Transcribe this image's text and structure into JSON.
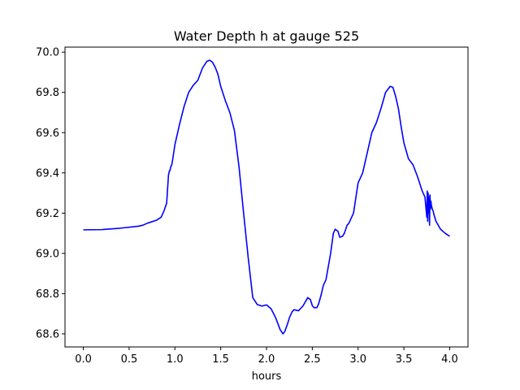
{
  "chart_data": {
    "type": "line",
    "title": "Water Depth h at gauge 525",
    "xlabel": "hours",
    "ylabel": "",
    "xlim": [
      -0.2,
      4.2
    ],
    "ylim": [
      68.535,
      70.025
    ],
    "xticks": [
      0.0,
      0.5,
      1.0,
      1.5,
      2.0,
      2.5,
      3.0,
      3.5,
      4.0
    ],
    "xtick_labels": [
      "0.0",
      "0.5",
      "1.0",
      "1.5",
      "2.0",
      "2.5",
      "3.0",
      "3.5",
      "4.0"
    ],
    "yticks": [
      68.6,
      68.8,
      69.0,
      69.2,
      69.4,
      69.6,
      69.8,
      70.0
    ],
    "ytick_labels": [
      "68.6",
      "68.8",
      "69.0",
      "69.2",
      "69.4",
      "69.6",
      "69.8",
      "70.0"
    ],
    "grid": false,
    "legend": "none",
    "series": [
      {
        "color": "#0000ff",
        "x": [
          0.0,
          0.2,
          0.4,
          0.6,
          0.65,
          0.7,
          0.8,
          0.85,
          0.88,
          0.91,
          0.93,
          0.94,
          0.945,
          0.955,
          0.965,
          0.97,
          0.98,
          1.0,
          1.05,
          1.1,
          1.15,
          1.2,
          1.25,
          1.3,
          1.35,
          1.38,
          1.41,
          1.44,
          1.47,
          1.5,
          1.55,
          1.6,
          1.65,
          1.7,
          1.75,
          1.8,
          1.85,
          1.9,
          1.92,
          1.95,
          1.98,
          2.0,
          2.05,
          2.1,
          2.15,
          2.18,
          2.2,
          2.23,
          2.25,
          2.28,
          2.3,
          2.35,
          2.4,
          2.45,
          2.48,
          2.5,
          2.52,
          2.55,
          2.57,
          2.6,
          2.62,
          2.65,
          2.7,
          2.73,
          2.75,
          2.78,
          2.8,
          2.83,
          2.85,
          2.88,
          2.9,
          2.95,
          3.0,
          3.05,
          3.1,
          3.15,
          3.2,
          3.25,
          3.3,
          3.35,
          3.38,
          3.41,
          3.44,
          3.47,
          3.5,
          3.55,
          3.6,
          3.65,
          3.7,
          3.73,
          3.75,
          3.755,
          3.76,
          3.765,
          3.77,
          3.775,
          3.78,
          3.785,
          3.79,
          3.795,
          3.8,
          3.81,
          3.82,
          3.83,
          3.85,
          3.9,
          3.95,
          4.0
        ],
        "y": [
          69.117,
          69.118,
          69.125,
          69.135,
          69.14,
          69.15,
          69.165,
          69.18,
          69.21,
          69.25,
          69.39,
          69.41,
          69.41,
          69.43,
          69.44,
          69.45,
          69.48,
          69.54,
          69.64,
          69.73,
          69.8,
          69.835,
          69.86,
          69.92,
          69.955,
          69.96,
          69.95,
          69.925,
          69.89,
          69.83,
          69.76,
          69.7,
          69.61,
          69.43,
          69.2,
          68.98,
          68.78,
          68.745,
          68.743,
          68.738,
          68.742,
          68.744,
          68.725,
          68.68,
          68.62,
          68.6,
          68.612,
          68.65,
          68.68,
          68.71,
          68.72,
          68.715,
          68.74,
          68.78,
          68.77,
          68.74,
          68.73,
          68.73,
          68.75,
          68.8,
          68.84,
          68.87,
          69.0,
          69.1,
          69.12,
          69.11,
          69.08,
          69.085,
          69.1,
          69.14,
          69.15,
          69.2,
          69.35,
          69.4,
          69.5,
          69.6,
          69.65,
          69.72,
          69.8,
          69.83,
          69.825,
          69.78,
          69.72,
          69.63,
          69.55,
          69.47,
          69.44,
          69.38,
          69.31,
          69.28,
          69.18,
          69.31,
          69.16,
          69.3,
          69.2,
          69.28,
          69.14,
          69.29,
          69.22,
          69.26,
          69.24,
          69.22,
          69.21,
          69.19,
          69.16,
          69.12,
          69.1,
          69.085
        ]
      }
    ]
  }
}
